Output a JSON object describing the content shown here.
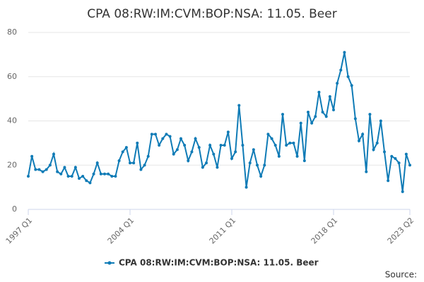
{
  "chart_data": {
    "type": "line",
    "title": "CPA 08:RW:IM:CVM:BOP:NSA: 11.05. Beer",
    "categories": [
      "1997 Q1",
      null,
      null,
      null,
      null,
      null,
      null,
      null,
      null,
      null,
      null,
      null,
      null,
      null,
      null,
      null,
      null,
      null,
      null,
      null,
      null,
      null,
      null,
      null,
      null,
      null,
      null,
      null,
      "2004 Q1",
      null,
      null,
      null,
      null,
      null,
      null,
      null,
      null,
      null,
      null,
      null,
      null,
      null,
      null,
      null,
      null,
      null,
      null,
      null,
      null,
      null,
      null,
      null,
      null,
      null,
      null,
      null,
      "2011 Q1",
      null,
      null,
      null,
      null,
      null,
      null,
      null,
      null,
      null,
      null,
      null,
      null,
      null,
      null,
      null,
      null,
      null,
      null,
      null,
      null,
      null,
      null,
      null,
      null,
      null,
      null,
      null,
      "2018 Q1",
      null,
      null,
      null,
      null,
      null,
      null,
      null,
      null,
      null,
      null,
      null,
      null,
      null,
      null,
      null,
      null,
      null,
      null,
      null,
      null,
      "2023 Q2"
    ],
    "series": [
      {
        "name": "CPA 08:RW:IM:CVM:BOP:NSA: 11.05. Beer",
        "color": "#0f7bb6",
        "values": [
          15,
          24,
          18,
          18,
          17,
          18,
          20,
          25,
          17,
          16,
          19,
          15,
          15,
          19,
          14,
          15,
          13,
          12,
          16,
          21,
          16,
          16,
          16,
          15,
          15,
          22,
          26,
          28,
          21,
          21,
          30,
          18,
          20,
          24,
          34,
          34,
          29,
          32,
          34,
          33,
          25,
          27,
          32,
          29,
          22,
          26,
          32,
          28,
          19,
          21,
          29,
          25,
          19,
          29,
          29,
          35,
          23,
          26,
          47,
          29,
          10,
          21,
          27,
          20,
          15,
          20,
          34,
          32,
          29,
          24,
          43,
          29,
          30,
          30,
          24,
          39,
          22,
          44,
          39,
          42,
          53,
          44,
          42,
          51,
          45,
          57,
          63,
          71,
          60,
          56,
          41,
          31,
          34,
          17,
          43,
          27,
          30,
          40,
          26,
          13,
          24,
          23,
          21,
          8,
          25,
          20
        ]
      }
    ],
    "ylim": [
      0,
      80
    ],
    "yticks": [
      0,
      20,
      40,
      60,
      80
    ],
    "grid": true,
    "source": "Source:"
  }
}
